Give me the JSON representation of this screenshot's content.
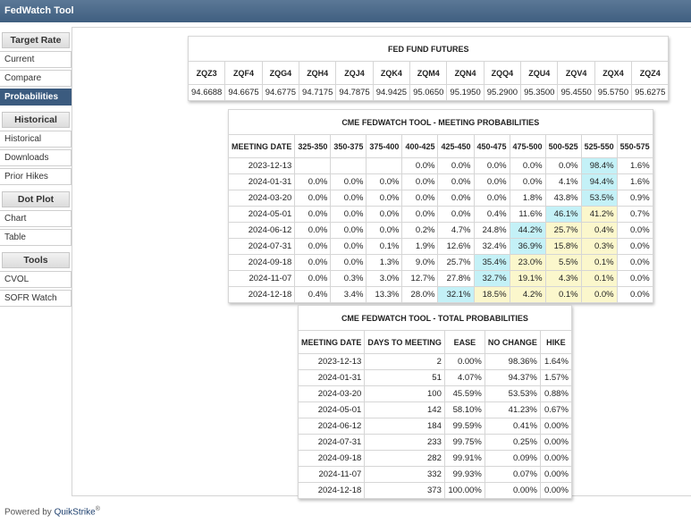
{
  "header": {
    "title": "FedWatch Tool"
  },
  "sidebar": [
    {
      "title": "Target Rate",
      "items": [
        {
          "label": "Current"
        },
        {
          "label": "Compare"
        },
        {
          "label": "Probabilities",
          "selected": true
        }
      ]
    },
    {
      "title": "Historical",
      "items": [
        {
          "label": "Historical"
        },
        {
          "label": "Downloads"
        },
        {
          "label": "Prior Hikes"
        }
      ]
    },
    {
      "title": "Dot Plot",
      "items": [
        {
          "label": "Chart"
        },
        {
          "label": "Table"
        }
      ]
    },
    {
      "title": "Tools",
      "items": [
        {
          "label": "CVOL"
        },
        {
          "label": "SOFR Watch"
        }
      ]
    }
  ],
  "futures": {
    "title": "FED FUND FUTURES",
    "columns": [
      "ZQZ3",
      "ZQF4",
      "ZQG4",
      "ZQH4",
      "ZQJ4",
      "ZQK4",
      "ZQM4",
      "ZQN4",
      "ZQQ4",
      "ZQU4",
      "ZQV4",
      "ZQX4",
      "ZQZ4"
    ],
    "rows": [
      [
        "94.6688",
        "94.6675",
        "94.6775",
        "94.7175",
        "94.7875",
        "94.9425",
        "95.0650",
        "95.1950",
        "95.2900",
        "95.3500",
        "95.4550",
        "95.5750",
        "95.6275"
      ]
    ]
  },
  "meeting_probabilities": {
    "title": "CME FEDWATCH TOOL - MEETING PROBABILITIES",
    "columns": [
      "MEETING DATE",
      "325-350",
      "350-375",
      "375-400",
      "400-425",
      "425-450",
      "450-475",
      "475-500",
      "500-525",
      "525-550",
      "550-575"
    ],
    "rows": [
      [
        "2023-12-13",
        null,
        null,
        null,
        "0.0%",
        "0.0%",
        "0.0%",
        "0.0%",
        "0.0%",
        "98.4%",
        "1.6%"
      ],
      [
        "2024-01-31",
        "0.0%",
        "0.0%",
        "0.0%",
        "0.0%",
        "0.0%",
        "0.0%",
        "0.0%",
        "4.1%",
        "94.4%",
        "1.6%"
      ],
      [
        "2024-03-20",
        "0.0%",
        "0.0%",
        "0.0%",
        "0.0%",
        "0.0%",
        "0.0%",
        "1.8%",
        "43.8%",
        "53.5%",
        "0.9%"
      ],
      [
        "2024-05-01",
        "0.0%",
        "0.0%",
        "0.0%",
        "0.0%",
        "0.0%",
        "0.4%",
        "11.6%",
        "46.1%",
        "41.2%",
        "0.7%"
      ],
      [
        "2024-06-12",
        "0.0%",
        "0.0%",
        "0.0%",
        "0.2%",
        "4.7%",
        "24.8%",
        "44.2%",
        "25.7%",
        "0.4%",
        "0.0%"
      ],
      [
        "2024-07-31",
        "0.0%",
        "0.0%",
        "0.1%",
        "1.9%",
        "12.6%",
        "32.4%",
        "36.9%",
        "15.8%",
        "0.3%",
        "0.0%"
      ],
      [
        "2024-09-18",
        "0.0%",
        "0.0%",
        "1.3%",
        "9.0%",
        "25.7%",
        "35.4%",
        "23.0%",
        "5.5%",
        "0.1%",
        "0.0%"
      ],
      [
        "2024-11-07",
        "0.0%",
        "0.3%",
        "3.0%",
        "12.7%",
        "27.8%",
        "32.7%",
        "19.1%",
        "4.3%",
        "0.1%",
        "0.0%"
      ],
      [
        "2024-12-18",
        "0.4%",
        "3.4%",
        "13.3%",
        "28.0%",
        "32.1%",
        "18.5%",
        "4.2%",
        "0.1%",
        "0.0%",
        "0.0%"
      ]
    ]
  },
  "total_probabilities": {
    "title": "CME FEDWATCH TOOL - TOTAL PROBABILITIES",
    "columns": [
      "MEETING DATE",
      "DAYS TO MEETING",
      "EASE",
      "NO CHANGE",
      "HIKE"
    ],
    "rows": [
      [
        "2023-12-13",
        "2",
        "0.00%",
        "98.36%",
        "1.64%"
      ],
      [
        "2024-01-31",
        "51",
        "4.07%",
        "94.37%",
        "1.57%"
      ],
      [
        "2024-03-20",
        "100",
        "45.59%",
        "53.53%",
        "0.88%"
      ],
      [
        "2024-05-01",
        "142",
        "58.10%",
        "41.23%",
        "0.67%"
      ],
      [
        "2024-06-12",
        "184",
        "99.59%",
        "0.41%",
        "0.00%"
      ],
      [
        "2024-07-31",
        "233",
        "99.75%",
        "0.25%",
        "0.00%"
      ],
      [
        "2024-09-18",
        "282",
        "99.91%",
        "0.09%",
        "0.00%"
      ],
      [
        "2024-11-07",
        "332",
        "99.93%",
        "0.07%",
        "0.00%"
      ],
      [
        "2024-12-18",
        "373",
        "100.00%",
        "0.00%",
        "0.00%"
      ]
    ]
  },
  "footer": {
    "text": "Powered by",
    "brand": "QuikStrike",
    "mark": "®"
  }
}
